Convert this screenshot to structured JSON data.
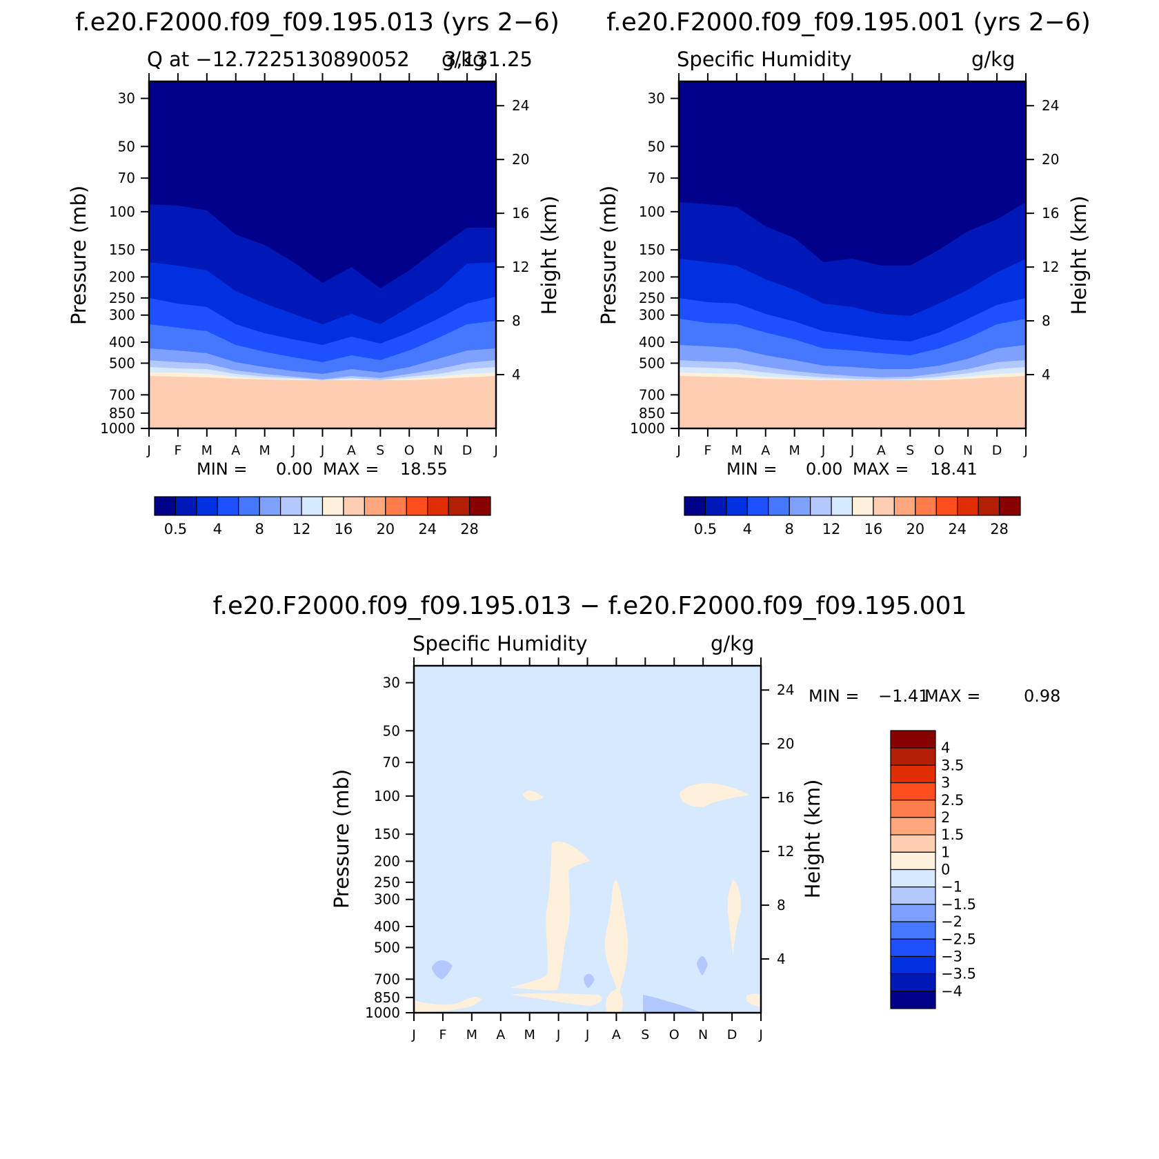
{
  "colors": {
    "seq": [
      "#00008b",
      "#0018b8",
      "#0030e0",
      "#1e50ff",
      "#4678ff",
      "#7ea0ff",
      "#b2c8ff",
      "#d7e9ff",
      "#fff0dc",
      "#ffcdb2",
      "#ffa880",
      "#ff7d4c",
      "#ff4e1e",
      "#e12d04",
      "#b41e04",
      "#880000"
    ],
    "diff": [
      "#00008b",
      "#0018b8",
      "#0030e0",
      "#1e50ff",
      "#4678ff",
      "#7ea0ff",
      "#b2c8ff",
      "#d7e9ff",
      "#fff0dc",
      "#ffcdb2",
      "#ffa880",
      "#ff7d4c",
      "#ff4e1e",
      "#e12d04",
      "#b41e04",
      "#880000"
    ]
  },
  "chart_data": [
    {
      "type": "contour",
      "main_title": "f.e20.F2000.f09_f09.195.013 (yrs 2−6)",
      "left_label": "Q at −12.7225130890052",
      "right_label": "g/kg",
      "extra_label": "3,131.25",
      "ylabel": "Pressure (mb)",
      "ylabel_right": "Height (km)",
      "pressure_levels": [
        "30",
        "50",
        "70",
        "100",
        "150",
        "200",
        "250",
        "300",
        "400",
        "500",
        "700",
        "850",
        "1000"
      ],
      "height_ticks": [
        "4",
        "8",
        "12",
        "16",
        "20",
        "24"
      ],
      "months": [
        "J",
        "F",
        "M",
        "A",
        "M",
        "J",
        "J",
        "A",
        "S",
        "O",
        "N",
        "D",
        "J"
      ],
      "min_label": "MIN =",
      "min_value": "0.00",
      "max_label": "MAX =",
      "max_value": "18.55",
      "colorbar_labels": [
        "0.5",
        "4",
        "8",
        "12",
        "16",
        "20",
        "24",
        "28"
      ],
      "boundaries": [
        [
          296,
          298,
          305,
          340,
          355,
          380,
          410,
          387,
          418,
          392,
          360,
          330,
          330
        ],
        [
          380,
          385,
          392,
          422,
          440,
          455,
          470,
          455,
          470,
          445,
          420,
          382,
          380
        ],
        [
          432,
          440,
          445,
          470,
          483,
          492,
          500,
          488,
          498,
          482,
          462,
          440,
          430
        ],
        [
          470,
          475,
          480,
          500,
          510,
          518,
          525,
          515,
          522,
          508,
          490,
          470,
          465
        ],
        [
          505,
          508,
          512,
          525,
          532,
          538,
          542,
          535,
          540,
          532,
          520,
          508,
          505
        ],
        [
          522,
          525,
          527,
          537,
          542,
          546,
          550,
          545,
          548,
          542,
          535,
          526,
          522
        ],
        [
          532,
          534,
          535,
          542,
          546,
          548,
          551,
          548,
          551,
          546,
          542,
          535,
          532
        ],
        [
          540,
          540,
          542,
          546,
          549,
          550,
          551,
          550,
          551,
          549,
          546,
          542,
          540
        ],
        [
          545,
          546,
          547,
          549,
          550,
          551,
          551,
          551,
          551,
          551,
          549,
          547,
          545
        ]
      ]
    },
    {
      "type": "contour",
      "main_title": "f.e20.F2000.f09_f09.195.001 (yrs 2−6)",
      "left_label": "Specific Humidity",
      "right_label": "g/kg",
      "ylabel": "Pressure (mb)",
      "ylabel_right": "Height (km)",
      "pressure_levels": [
        "30",
        "50",
        "70",
        "100",
        "150",
        "200",
        "250",
        "300",
        "400",
        "500",
        "700",
        "850",
        "1000"
      ],
      "height_ticks": [
        "4",
        "8",
        "12",
        "16",
        "20",
        "24"
      ],
      "months": [
        "J",
        "F",
        "M",
        "A",
        "M",
        "J",
        "J",
        "A",
        "S",
        "O",
        "N",
        "D",
        "J"
      ],
      "min_label": "MIN =",
      "min_value": "0.00",
      "max_label": "MAX =",
      "max_value": "18.41",
      "colorbar_labels": [
        "0.5",
        "4",
        "8",
        "12",
        "16",
        "20",
        "24",
        "28"
      ],
      "boundaries": [
        [
          293,
          296,
          300,
          328,
          345,
          380,
          375,
          385,
          385,
          362,
          335,
          318,
          293
        ],
        [
          375,
          380,
          385,
          405,
          420,
          440,
          445,
          455,
          458,
          440,
          420,
          395,
          375
        ],
        [
          432,
          438,
          440,
          455,
          466,
          480,
          486,
          492,
          495,
          482,
          462,
          442,
          432
        ],
        [
          462,
          468,
          470,
          482,
          492,
          505,
          508,
          512,
          515,
          505,
          490,
          470,
          462
        ],
        [
          500,
          502,
          505,
          515,
          522,
          530,
          532,
          535,
          535,
          530,
          520,
          505,
          500
        ],
        [
          522,
          524,
          525,
          532,
          538,
          542,
          545,
          547,
          546,
          541,
          535,
          525,
          522
        ],
        [
          532,
          533,
          535,
          540,
          544,
          547,
          549,
          550,
          549,
          546,
          541,
          535,
          532
        ],
        [
          540,
          541,
          542,
          546,
          548,
          550,
          551,
          551,
          551,
          549,
          546,
          542,
          540
        ],
        [
          545,
          546,
          547,
          549,
          550,
          551,
          551,
          551,
          551,
          551,
          549,
          547,
          545
        ]
      ]
    },
    {
      "type": "contour",
      "main_title": "f.e20.F2000.f09_f09.195.013 − f.e20.F2000.f09_f09.195.001",
      "left_label": "Specific Humidity",
      "right_label": "g/kg",
      "ylabel": "Pressure (mb)",
      "ylabel_right": "Height (km)",
      "pressure_levels": [
        "30",
        "50",
        "70",
        "100",
        "150",
        "200",
        "250",
        "300",
        "400",
        "500",
        "700",
        "850",
        "1000"
      ],
      "height_ticks": [
        "4",
        "8",
        "12",
        "16",
        "20",
        "24"
      ],
      "months": [
        "J",
        "F",
        "M",
        "A",
        "M",
        "J",
        "J",
        "A",
        "S",
        "O",
        "N",
        "D",
        "J"
      ],
      "min_label": "MIN =",
      "min_value": "−1.41",
      "max_label": "MAX =",
      "max_value": "0.98",
      "colorbar_labels": [
        "4",
        "3.5",
        "3",
        "2.5",
        "2",
        "1.5",
        "1",
        "0",
        "−1",
        "−1.5",
        "−2",
        "−2.5",
        "−3",
        "−3.5",
        "−4"
      ]
    }
  ]
}
